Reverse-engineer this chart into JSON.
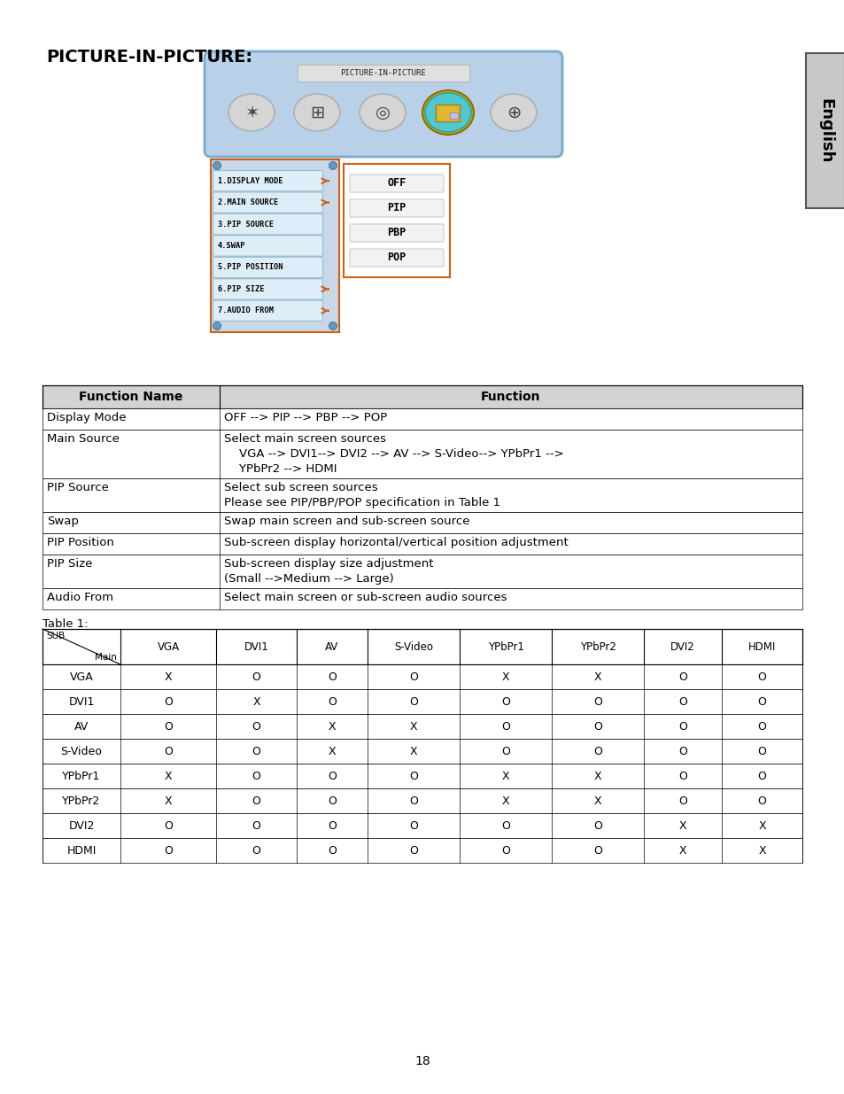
{
  "title": "PICTURE-IN-PICTURE:",
  "page_number": "18",
  "bg_color": "#ffffff",
  "function_table": {
    "headers": [
      "Function Name",
      "Function"
    ],
    "header_bg": "#d3d3d3",
    "rows": [
      [
        "Display Mode",
        "OFF --> PIP --> PBP --> POP"
      ],
      [
        "Main Source",
        "Select main screen sources\n    VGA --> DVI1--> DVI2 --> AV --> S-Video--> YPbPr1 -->\n    YPbPr2 --> HDMI"
      ],
      [
        "PIP Source",
        "Select sub screen sources\nPlease see PIP/PBP/POP specification in Table 1"
      ],
      [
        "Swap",
        "Swap main screen and sub-screen source"
      ],
      [
        "PIP Position",
        "Sub-screen display horizontal/vertical position adjustment"
      ],
      [
        "PIP Size",
        "Sub-screen display size adjustment\n(Small -->Medium --> Large)"
      ],
      [
        "Audio From",
        "Select main screen or sub-screen audio sources"
      ]
    ]
  },
  "table1_label": "Table 1:",
  "table1_cols": [
    "",
    "VGA",
    "DVI1",
    "AV",
    "S-Video",
    "YPbPr1",
    "YPbPr2",
    "DVI2",
    "HDMI"
  ],
  "table1_rows": [
    [
      "VGA",
      "X",
      "O",
      "O",
      "O",
      "X",
      "X",
      "O",
      "O"
    ],
    [
      "DVI1",
      "O",
      "X",
      "O",
      "O",
      "O",
      "O",
      "O",
      "O"
    ],
    [
      "AV",
      "O",
      "O",
      "X",
      "X",
      "O",
      "O",
      "O",
      "O"
    ],
    [
      "S-Video",
      "O",
      "O",
      "X",
      "X",
      "O",
      "O",
      "O",
      "O"
    ],
    [
      "YPbPr1",
      "X",
      "O",
      "O",
      "O",
      "X",
      "X",
      "O",
      "O"
    ],
    [
      "YPbPr2",
      "X",
      "O",
      "O",
      "O",
      "X",
      "X",
      "O",
      "O"
    ],
    [
      "DVI2",
      "O",
      "O",
      "O",
      "O",
      "O",
      "O",
      "X",
      "X"
    ],
    [
      "HDMI",
      "O",
      "O",
      "O",
      "O",
      "O",
      "O",
      "X",
      "X"
    ]
  ],
  "pip_menu_bg": "#b8d0e8",
  "pip_menu_border": "#7aaacc",
  "pip_label_bg": "#e8e8e8",
  "pip_label_text": "PICTURE-IN-PICTURE",
  "side_menu_items": [
    "1.DISPLAY MODE",
    "2.MAIN SOURCE",
    "3.PIP SOURCE",
    "4.SWAP",
    "5.PIP POSITION",
    "6.PIP SIZE",
    "7.AUDIO FROM"
  ],
  "side_menu_arrows": [
    0,
    1,
    5,
    6
  ],
  "side_menu_bg": "#c8d8e8",
  "side_menu_border": "#d06010",
  "submenu_items": [
    "OFF",
    "PIP",
    "PBP",
    "POP"
  ],
  "submenu_border": "#d06010",
  "english_tab_bg": "#c8c8c8",
  "english_tab_text": "English"
}
